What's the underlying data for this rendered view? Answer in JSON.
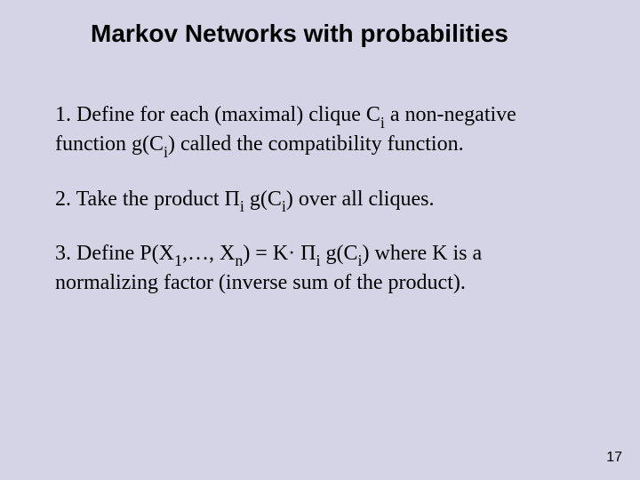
{
  "slide": {
    "title": "Markov Networks with probabilities",
    "background_color": "#d5d3e6",
    "title_font": "Arial",
    "title_fontsize": 28,
    "title_weight": "bold",
    "body_font": "Times New Roman",
    "body_fontsize": 24,
    "text_color": "#000000",
    "paragraphs": {
      "p1_prefix": "1. Define for each (maximal) clique C",
      "p1_sub1": "i",
      "p1_mid1": " a non-negative function g(C",
      "p1_sub2": "i",
      "p1_mid2": ") called the compatibility function.",
      "p2_prefix": "2. Take the product  Π",
      "p2_sub1": "i",
      "p2_mid1": " g(C",
      "p2_sub2": "i",
      "p2_mid2": ")  over all cliques.",
      "p3_prefix": "3. Define P(X",
      "p3_sub1": "1",
      "p3_mid1": ",…, X",
      "p3_sub2": "n",
      "p3_mid2": ") = K· Π",
      "p3_sub3": "i",
      "p3_mid3": " g(C",
      "p3_sub4": "i",
      "p3_mid4": ")  where K is a normalizing factor (inverse sum of the product)."
    },
    "page_number": "17"
  }
}
